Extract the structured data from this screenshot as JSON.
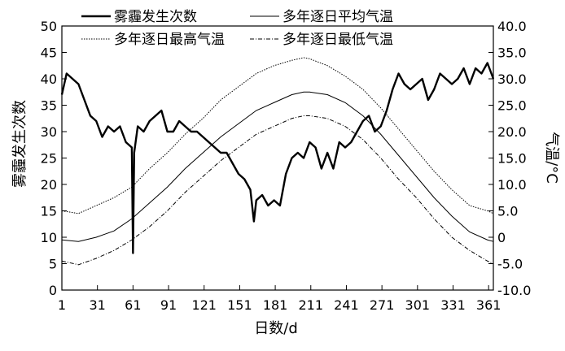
{
  "chart_data": {
    "type": "line",
    "xlabel": "日数/d",
    "ylabel_left": "雾霾发生次数",
    "ylabel_right": "气温/°C",
    "xlim": [
      1,
      365
    ],
    "ylim_left": [
      0,
      50
    ],
    "ylim_right": [
      -10,
      40
    ],
    "x_ticks": [
      "1",
      "31",
      "61",
      "91",
      "121",
      "151",
      "181",
      "211",
      "241",
      "271",
      "301",
      "331",
      "361"
    ],
    "y_left_ticks": [
      "0",
      "5",
      "10",
      "15",
      "20",
      "25",
      "30",
      "35",
      "40",
      "45",
      "50"
    ],
    "y_right_ticks": [
      "-10.0",
      "-5.0",
      "0",
      "5.0",
      "10.0",
      "15.0",
      "20.0",
      "25.0",
      "30.0",
      "35.0",
      "40.0"
    ],
    "grid": false,
    "legend_position": "top",
    "legend": [
      {
        "label": "雾霾发生次数",
        "series": "haze"
      },
      {
        "label": "多年逐日平均气温",
        "series": "t_mean"
      },
      {
        "label": "多年逐日最高气温",
        "series": "t_max"
      },
      {
        "label": "多年逐日最低气温",
        "series": "t_min"
      }
    ],
    "series": [
      {
        "name": "雾霾发生次数",
        "id": "haze",
        "axis": "left",
        "style": "solid-thick",
        "x": [
          1,
          5,
          10,
          15,
          20,
          25,
          30,
          35,
          40,
          45,
          50,
          55,
          60,
          61,
          62,
          65,
          70,
          75,
          80,
          85,
          90,
          95,
          100,
          105,
          110,
          115,
          120,
          125,
          130,
          135,
          140,
          145,
          150,
          155,
          160,
          163,
          165,
          170,
          175,
          180,
          185,
          190,
          195,
          200,
          205,
          210,
          215,
          220,
          225,
          230,
          235,
          240,
          245,
          250,
          255,
          260,
          265,
          270,
          275,
          280,
          285,
          290,
          295,
          300,
          305,
          310,
          315,
          320,
          325,
          330,
          335,
          340,
          345,
          350,
          355,
          360,
          365
        ],
        "y": [
          37,
          41,
          40,
          39,
          36,
          33,
          32,
          29,
          31,
          30,
          31,
          28,
          27,
          7,
          26,
          31,
          30,
          32,
          33,
          34,
          30,
          30,
          32,
          31,
          30,
          30,
          29,
          28,
          27,
          26,
          26,
          24,
          22,
          21,
          19,
          13,
          17,
          18,
          16,
          17,
          16,
          22,
          25,
          26,
          25,
          28,
          27,
          23,
          26,
          23,
          28,
          27,
          28,
          30,
          32,
          33,
          30,
          31,
          34,
          38,
          41,
          39,
          38,
          39,
          40,
          36,
          38,
          41,
          40,
          39,
          40,
          42,
          39,
          42,
          41,
          43,
          40
        ]
      },
      {
        "name": "多年逐日平均气温",
        "id": "t_mean",
        "axis": "right",
        "style": "solid-thin",
        "x": [
          1,
          15,
          30,
          45,
          60,
          75,
          90,
          105,
          120,
          135,
          150,
          165,
          180,
          195,
          205,
          210,
          225,
          240,
          255,
          270,
          285,
          300,
          315,
          330,
          345,
          360,
          365
        ],
        "y": [
          -0.5,
          -0.8,
          0,
          1.2,
          3.5,
          6.5,
          9.5,
          13,
          16,
          19,
          21.5,
          24,
          25.5,
          27,
          27.5,
          27.5,
          27,
          25.5,
          23,
          19.5,
          15.5,
          11.5,
          7.5,
          4,
          1,
          -0.5,
          -0.8
        ]
      },
      {
        "name": "多年逐日最高气温",
        "id": "t_max",
        "axis": "right",
        "style": "dotted",
        "x": [
          1,
          15,
          30,
          45,
          60,
          75,
          90,
          105,
          120,
          135,
          150,
          165,
          180,
          195,
          205,
          210,
          225,
          240,
          255,
          270,
          285,
          300,
          315,
          330,
          345,
          360,
          365
        ],
        "y": [
          5,
          4.5,
          6,
          7.5,
          9.5,
          13,
          16,
          19.5,
          22.5,
          26,
          28.5,
          31,
          32.5,
          33.5,
          34,
          33.8,
          32.5,
          30.5,
          28,
          24.5,
          20.5,
          16.5,
          12.5,
          9,
          6,
          5,
          4.5
        ]
      },
      {
        "name": "多年逐日最低气温",
        "id": "t_min",
        "axis": "right",
        "style": "dash-dot",
        "x": [
          1,
          15,
          30,
          45,
          60,
          75,
          90,
          105,
          120,
          135,
          150,
          165,
          180,
          195,
          205,
          210,
          225,
          240,
          255,
          270,
          285,
          300,
          315,
          330,
          345,
          360,
          365
        ],
        "y": [
          -4.5,
          -5.2,
          -4,
          -2.5,
          -0.5,
          2,
          5,
          8.5,
          11.5,
          14.5,
          17,
          19.5,
          21,
          22.5,
          23,
          23,
          22.5,
          21,
          18.5,
          15,
          11,
          7.5,
          3.5,
          0,
          -2.5,
          -4.5,
          -5
        ]
      }
    ]
  }
}
